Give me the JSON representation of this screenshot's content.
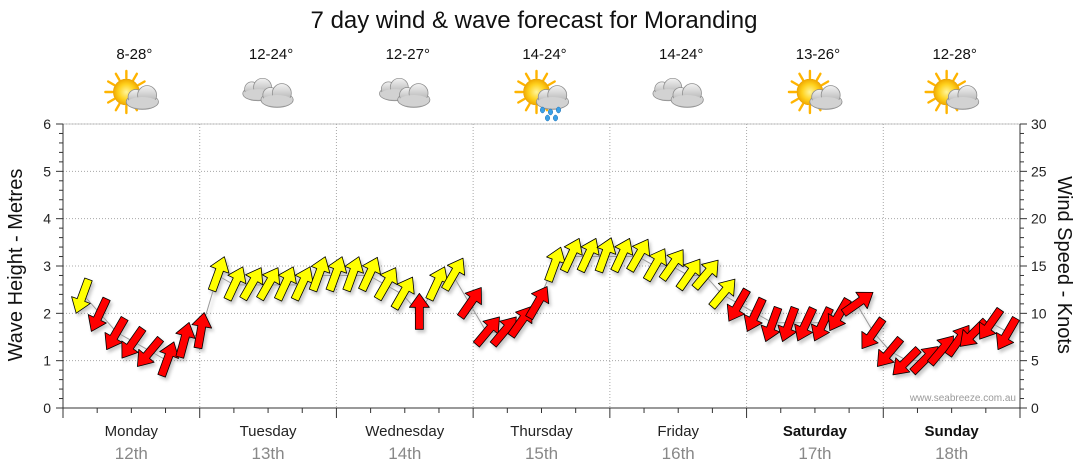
{
  "chart_data": {
    "type": "line",
    "title": "7 day wind & wave forecast for Moranding",
    "y_left_label": "Wave Height - Metres",
    "y_right_label": "Wind Speed - Knots",
    "y_left_range": [
      0,
      6
    ],
    "y_left_ticks": [
      "0",
      "1",
      "2",
      "3",
      "4",
      "5",
      "6"
    ],
    "y_right_range": [
      0,
      30
    ],
    "y_right_ticks": [
      "0",
      "5",
      "10",
      "15",
      "20",
      "25",
      "30"
    ],
    "grid": true,
    "days": [
      {
        "day": "Monday",
        "date": "12th",
        "temp": "8-28°",
        "icon": "sun-cloud-icon",
        "bold": false
      },
      {
        "day": "Tuesday",
        "date": "13th",
        "temp": "12-24°",
        "icon": "cloud-icon",
        "bold": false
      },
      {
        "day": "Wednesday",
        "date": "14th",
        "temp": "12-27°",
        "icon": "cloud-icon",
        "bold": false
      },
      {
        "day": "Thursday",
        "date": "15th",
        "temp": "14-24°",
        "icon": "sun-cloud-rain-icon",
        "bold": false
      },
      {
        "day": "Friday",
        "date": "16th",
        "temp": "14-24°",
        "icon": "cloud-icon",
        "bold": false
      },
      {
        "day": "Saturday",
        "date": "17th",
        "temp": "13-26°",
        "icon": "sun-cloud-icon",
        "bold": true
      },
      {
        "day": "Sunday",
        "date": "18th",
        "temp": "12-28°",
        "icon": "sun-cloud-icon",
        "bold": true
      }
    ],
    "wind_series": {
      "name": "Wind",
      "unit": "knots",
      "values": [
        12,
        10,
        8,
        7,
        6,
        5,
        7,
        8,
        14,
        13,
        13,
        13,
        13,
        13,
        14,
        14,
        14,
        14,
        13,
        12,
        10,
        13,
        14,
        11,
        8,
        8,
        9,
        11,
        15,
        16,
        16,
        16,
        16,
        16,
        15,
        15,
        14,
        14,
        12,
        11,
        10,
        9,
        9,
        9,
        9,
        10,
        11,
        8,
        6,
        5,
        5,
        6,
        7,
        8,
        9,
        8
      ],
      "direction_deg": [
        200,
        205,
        210,
        215,
        220,
        20,
        15,
        10,
        20,
        25,
        30,
        30,
        25,
        25,
        20,
        20,
        20,
        25,
        30,
        30,
        0,
        25,
        30,
        35,
        40,
        40,
        35,
        30,
        20,
        25,
        25,
        20,
        25,
        30,
        30,
        35,
        35,
        40,
        40,
        210,
        205,
        200,
        200,
        205,
        205,
        210,
        55,
        215,
        220,
        225,
        45,
        40,
        35,
        225,
        215,
        210
      ],
      "color_ranges": [
        {
          "from": 0,
          "to": 12,
          "color": "#ff0000"
        },
        {
          "from": 12,
          "to": 17,
          "color": "#ffff00"
        }
      ]
    },
    "wave_series": {
      "name": "Wave",
      "unit": "metres",
      "values": []
    }
  },
  "watermark": "www.seabreeze.com.au",
  "colors": {
    "wind_strong": "#ffff00",
    "wind_moderate": "#ff0000",
    "grid": "#b0b0b0",
    "date_text": "#888888"
  }
}
